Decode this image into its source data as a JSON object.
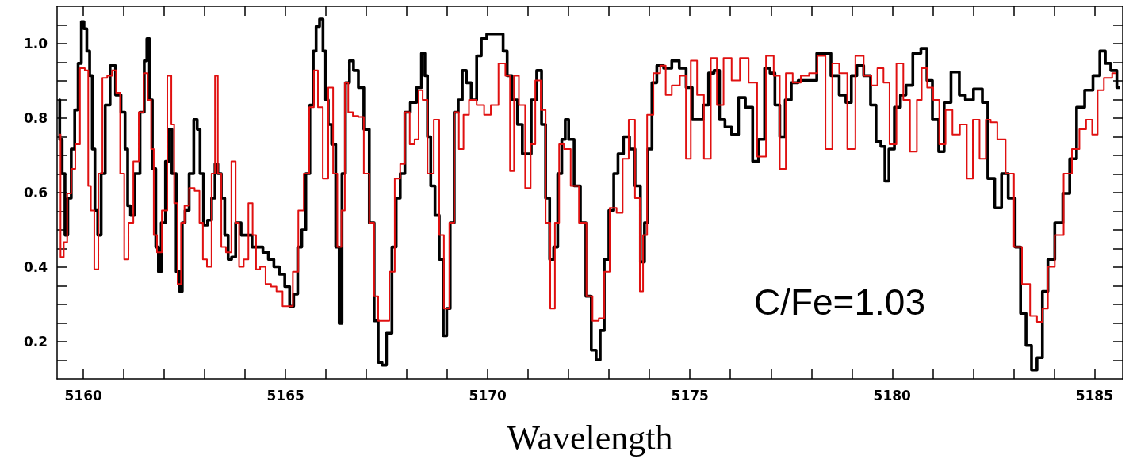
{
  "chart_data": {
    "type": "step",
    "xlabel": "Wavelength",
    "annotations": [
      "C/Fe=1.03"
    ],
    "xlim": [
      5159.35,
      5185.7
    ],
    "ylim": [
      0.1,
      1.1
    ],
    "xticks": [
      5160,
      {
        "value": 5161,
        "label": null
      },
      {
        "value": 5162,
        "label": null
      },
      {
        "value": 5163,
        "label": null
      },
      {
        "value": 5164,
        "label": null
      },
      5165,
      {
        "value": 5166,
        "label": null
      },
      {
        "value": 5167,
        "label": null
      },
      {
        "value": 5168,
        "label": null
      },
      {
        "value": 5169,
        "label": null
      },
      5170,
      {
        "value": 5171,
        "label": null
      },
      {
        "value": 5172,
        "label": null
      },
      {
        "value": 5173,
        "label": null
      },
      {
        "value": 5174,
        "label": null
      },
      5175,
      {
        "value": 5176,
        "label": null
      },
      {
        "value": 5177,
        "label": null
      },
      {
        "value": 5178,
        "label": null
      },
      {
        "value": 5179,
        "label": null
      },
      5180,
      {
        "value": 5181,
        "label": null
      },
      {
        "value": 5182,
        "label": null
      },
      {
        "value": 5183,
        "label": null
      },
      {
        "value": 5184,
        "label": null
      },
      5185
    ],
    "yticks": [
      {
        "value": 0.15,
        "label": null
      },
      0.2,
      {
        "value": 0.25,
        "label": null
      },
      {
        "value": 0.3,
        "label": null
      },
      {
        "value": 0.35,
        "label": null
      },
      0.4,
      {
        "value": 0.45,
        "label": null
      },
      {
        "value": 0.5,
        "label": null
      },
      {
        "value": 0.55,
        "label": null
      },
      0.6,
      {
        "value": 0.65,
        "label": null
      },
      {
        "value": 0.7,
        "label": null
      },
      {
        "value": 0.75,
        "label": null
      },
      0.8,
      {
        "value": 0.85,
        "label": null
      },
      {
        "value": 0.9,
        "label": null
      },
      {
        "value": 0.95,
        "label": null
      },
      {
        "value": 1,
        "label": "1.0"
      },
      {
        "value": 1.05,
        "label": null
      }
    ],
    "series": [
      {
        "color": "#000000",
        "x": [
          5159.39,
          5159.44,
          5159.51,
          5159.58,
          5159.65,
          5159.75,
          5159.82,
          5159.92,
          5159.98,
          5160.05,
          5160.12,
          5160.19,
          5160.25,
          5160.32,
          5160.39,
          5160.49,
          5160.59,
          5160.73,
          5160.86,
          5161.0,
          5161.06,
          5161.13,
          5161.2,
          5161.33,
          5161.47,
          5161.54,
          5161.6,
          5161.67,
          5161.74,
          5161.84,
          5161.87,
          5161.98,
          5162.08,
          5162.14,
          5162.24,
          5162.35,
          5162.41,
          5162.48,
          5162.55,
          5162.68,
          5162.78,
          5162.85,
          5162.92,
          5163.02,
          5163.12,
          5163.22,
          5163.29,
          5163.36,
          5163.46,
          5163.53,
          5163.63,
          5163.7,
          5163.83,
          5163.97,
          5164.1,
          5164.24,
          5164.37,
          5164.51,
          5164.64,
          5164.78,
          5164.91,
          5165.05,
          5165.15,
          5165.25,
          5165.35,
          5165.45,
          5165.55,
          5165.65,
          5165.72,
          5165.79,
          5165.89,
          5165.96,
          5166.02,
          5166.09,
          5166.19,
          5166.29,
          5166.36,
          5166.43,
          5166.53,
          5166.63,
          5166.73,
          5166.87,
          5167.0,
          5167.14,
          5167.24,
          5167.34,
          5167.43,
          5167.56,
          5167.7,
          5167.77,
          5167.9,
          5168.0,
          5168.17,
          5168.31,
          5168.41,
          5168.48,
          5168.54,
          5168.64,
          5168.75,
          5168.85,
          5168.95,
          5169.02,
          5169.12,
          5169.22,
          5169.32,
          5169.42,
          5169.52,
          5169.66,
          5169.79,
          5169.89,
          5170.06,
          5170.33,
          5170.43,
          5170.53,
          5170.67,
          5170.8,
          5170.91,
          5171.01,
          5171.14,
          5171.28,
          5171.38,
          5171.48,
          5171.58,
          5171.68,
          5171.78,
          5171.88,
          5171.95,
          5172.05,
          5172.22,
          5172.36,
          5172.49,
          5172.63,
          5172.73,
          5172.83,
          5172.93,
          5173.06,
          5173.17,
          5173.27,
          5173.44,
          5173.57,
          5173.71,
          5173.84,
          5173.91,
          5174.01,
          5174.11,
          5174.25,
          5174.45,
          5174.65,
          5174.82,
          5174.99,
          5175.12,
          5175.26,
          5175.39,
          5175.53,
          5175.66,
          5175.8,
          5175.93,
          5176.13,
          5176.27,
          5176.47,
          5176.63,
          5176.76,
          5176.93,
          5177.03,
          5177.17,
          5177.27,
          5177.44,
          5177.57,
          5177.78,
          5178.05,
          5178.22,
          5178.38,
          5178.59,
          5178.79,
          5178.92,
          5179.06,
          5179.19,
          5179.4,
          5179.53,
          5179.67,
          5179.77,
          5179.87,
          5179.97,
          5180.14,
          5180.27,
          5180.41,
          5180.61,
          5180.81,
          5180.91,
          5181.08,
          5181.22,
          5181.35,
          5181.56,
          5181.76,
          5181.86,
          5182.16,
          5182.3,
          5182.43,
          5182.64,
          5182.77,
          5182.97,
          5183.11,
          5183.24,
          5183.38,
          5183.51,
          5183.65,
          5183.78,
          5183.92,
          5184.12,
          5184.32,
          5184.46,
          5184.66,
          5184.86,
          5185.07,
          5185.2,
          5185.34,
          5185.47,
          5185.64
        ],
        "values": [
          0.849,
          0.743,
          0.651,
          0.486,
          0.585,
          0.717,
          0.822,
          0.947,
          1.059,
          1.04,
          0.98,
          0.914,
          0.717,
          0.552,
          0.486,
          0.651,
          0.835,
          0.941,
          0.862,
          0.816,
          0.717,
          0.565,
          0.539,
          0.651,
          0.816,
          0.954,
          1.013,
          0.849,
          0.664,
          0.454,
          0.388,
          0.519,
          0.684,
          0.77,
          0.651,
          0.388,
          0.335,
          0.519,
          0.552,
          0.651,
          0.796,
          0.77,
          0.651,
          0.513,
          0.526,
          0.585,
          0.677,
          0.651,
          0.585,
          0.486,
          0.421,
          0.427,
          0.519,
          0.486,
          0.486,
          0.454,
          0.454,
          0.44,
          0.421,
          0.401,
          0.381,
          0.348,
          0.295,
          0.328,
          0.454,
          0.5,
          0.651,
          0.835,
          0.98,
          1.046,
          1.066,
          0.98,
          0.849,
          0.783,
          0.73,
          0.454,
          0.249,
          0.651,
          0.895,
          0.954,
          0.928,
          0.882,
          0.77,
          0.519,
          0.256,
          0.144,
          0.137,
          0.223,
          0.454,
          0.585,
          0.651,
          0.816,
          0.842,
          0.882,
          0.974,
          0.914,
          0.75,
          0.618,
          0.539,
          0.421,
          0.216,
          0.289,
          0.519,
          0.816,
          0.849,
          0.928,
          0.895,
          0.849,
          0.967,
          1.013,
          1.026,
          1.026,
          0.98,
          0.914,
          0.849,
          0.783,
          0.704,
          0.704,
          0.849,
          0.928,
          0.783,
          0.585,
          0.421,
          0.454,
          0.651,
          0.743,
          0.796,
          0.743,
          0.618,
          0.519,
          0.322,
          0.177,
          0.151,
          0.23,
          0.421,
          0.552,
          0.651,
          0.704,
          0.75,
          0.717,
          0.618,
          0.414,
          0.519,
          0.717,
          0.895,
          0.941,
          0.934,
          0.954,
          0.934,
          0.882,
          0.796,
          0.796,
          0.835,
          0.921,
          0.928,
          0.796,
          0.776,
          0.756,
          0.855,
          0.829,
          0.684,
          0.743,
          0.934,
          0.921,
          0.835,
          0.75,
          0.849,
          0.895,
          0.901,
          0.901,
          0.974,
          0.974,
          0.914,
          0.862,
          0.842,
          0.914,
          0.941,
          0.914,
          0.835,
          0.737,
          0.724,
          0.631,
          0.717,
          0.829,
          0.862,
          0.888,
          0.974,
          0.987,
          0.901,
          0.796,
          0.71,
          0.842,
          0.924,
          0.862,
          0.849,
          0.878,
          0.842,
          0.638,
          0.559,
          0.651,
          0.585,
          0.454,
          0.276,
          0.19,
          0.124,
          0.157,
          0.335,
          0.421,
          0.519,
          0.598,
          0.691,
          0.829,
          0.875,
          0.914,
          0.98,
          0.947,
          0.928,
          0.882
        ]
      },
      {
        "color": "#e01010",
        "x": [
          5159.39,
          5159.48,
          5159.55,
          5159.65,
          5159.75,
          5159.85,
          5159.98,
          5160.09,
          5160.15,
          5160.22,
          5160.32,
          5160.42,
          5160.52,
          5160.66,
          5160.76,
          5160.86,
          5160.96,
          5161.06,
          5161.17,
          5161.3,
          5161.44,
          5161.54,
          5161.64,
          5161.71,
          5161.77,
          5161.87,
          5162.01,
          5162.14,
          5162.21,
          5162.28,
          5162.38,
          5162.45,
          5162.55,
          5162.68,
          5162.82,
          5162.92,
          5162.99,
          5163.12,
          5163.22,
          5163.29,
          5163.36,
          5163.46,
          5163.59,
          5163.73,
          5163.8,
          5163.9,
          5164.03,
          5164.13,
          5164.24,
          5164.3,
          5164.44,
          5164.57,
          5164.71,
          5164.84,
          5165.01,
          5165.11,
          5165.25,
          5165.38,
          5165.52,
          5165.65,
          5165.75,
          5165.85,
          5165.99,
          5166.12,
          5166.23,
          5166.33,
          5166.43,
          5166.5,
          5166.6,
          5166.73,
          5166.87,
          5167.0,
          5167.14,
          5167.24,
          5167.34,
          5167.5,
          5167.63,
          5167.77,
          5167.9,
          5168.0,
          5168.14,
          5168.24,
          5168.34,
          5168.44,
          5168.58,
          5168.75,
          5168.85,
          5168.98,
          5169.12,
          5169.22,
          5169.35,
          5169.45,
          5169.62,
          5169.83,
          5169.99,
          5170.16,
          5170.37,
          5170.5,
          5170.6,
          5170.7,
          5170.84,
          5171.01,
          5171.11,
          5171.24,
          5171.38,
          5171.48,
          5171.61,
          5171.71,
          5171.82,
          5171.95,
          5172.15,
          5172.36,
          5172.52,
          5172.66,
          5172.83,
          5172.93,
          5173.1,
          5173.27,
          5173.4,
          5173.57,
          5173.71,
          5173.81,
          5173.87,
          5174.01,
          5174.18,
          5174.35,
          5174.45,
          5174.65,
          5174.85,
          5174.95,
          5175.09,
          5175.26,
          5175.43,
          5175.6,
          5175.73,
          5175.93,
          5176.13,
          5176.34,
          5176.56,
          5176.76,
          5177.0,
          5177.14,
          5177.3,
          5177.44,
          5177.64,
          5177.84,
          5178.05,
          5178.25,
          5178.45,
          5178.59,
          5178.79,
          5178.99,
          5179.19,
          5179.4,
          5179.57,
          5179.7,
          5179.87,
          5180.0,
          5180.21,
          5180.34,
          5180.54,
          5180.68,
          5180.78,
          5180.95,
          5181.08,
          5181.25,
          5181.39,
          5181.59,
          5181.76,
          5181.93,
          5182.06,
          5182.26,
          5182.37,
          5182.5,
          5182.7,
          5182.91,
          5183.11,
          5183.31,
          5183.51,
          5183.65,
          5183.78,
          5183.92,
          5184.12,
          5184.36,
          5184.53,
          5184.73,
          5184.86,
          5185.03,
          5185.13,
          5185.34,
          5185.54
        ],
        "values": [
          0.756,
          0.427,
          0.467,
          0.598,
          0.664,
          0.73,
          0.934,
          0.928,
          0.618,
          0.552,
          0.394,
          0.651,
          0.908,
          0.914,
          0.928,
          0.868,
          0.651,
          0.421,
          0.519,
          0.684,
          0.816,
          0.921,
          0.849,
          0.717,
          0.486,
          0.44,
          0.552,
          0.914,
          0.783,
          0.572,
          0.355,
          0.519,
          0.565,
          0.612,
          0.605,
          0.519,
          0.421,
          0.401,
          0.651,
          0.914,
          0.651,
          0.454,
          0.44,
          0.684,
          0.519,
          0.401,
          0.421,
          0.572,
          0.486,
          0.394,
          0.401,
          0.355,
          0.348,
          0.335,
          0.295,
          0.295,
          0.388,
          0.552,
          0.651,
          0.829,
          0.928,
          0.829,
          0.638,
          0.882,
          0.651,
          0.454,
          0.552,
          0.895,
          0.816,
          0.806,
          0.803,
          0.651,
          0.519,
          0.322,
          0.256,
          0.256,
          0.388,
          0.638,
          0.677,
          0.816,
          0.73,
          0.743,
          0.875,
          0.849,
          0.651,
          0.796,
          0.486,
          0.289,
          0.519,
          0.816,
          0.717,
          0.809,
          0.849,
          0.835,
          0.809,
          0.835,
          0.947,
          0.914,
          0.658,
          0.914,
          0.835,
          0.612,
          0.73,
          0.901,
          0.822,
          0.519,
          0.289,
          0.519,
          0.73,
          0.717,
          0.618,
          0.519,
          0.322,
          0.256,
          0.263,
          0.388,
          0.559,
          0.546,
          0.691,
          0.796,
          0.585,
          0.335,
          0.486,
          0.809,
          0.921,
          0.941,
          0.862,
          0.888,
          0.914,
          0.691,
          0.954,
          0.862,
          0.691,
          0.961,
          0.835,
          0.961,
          0.901,
          0.961,
          0.895,
          0.697,
          0.967,
          0.914,
          0.664,
          0.921,
          0.895,
          0.914,
          0.921,
          0.967,
          0.717,
          0.947,
          0.921,
          0.717,
          0.967,
          0.914,
          0.888,
          0.934,
          0.895,
          0.73,
          0.947,
          0.849,
          0.71,
          0.849,
          0.934,
          0.882,
          0.849,
          0.73,
          0.822,
          0.756,
          0.783,
          0.638,
          0.796,
          0.691,
          0.796,
          0.789,
          0.743,
          0.651,
          0.454,
          0.355,
          0.269,
          0.253,
          0.289,
          0.401,
          0.486,
          0.651,
          0.717,
          0.77,
          0.796,
          0.756,
          0.875,
          0.908,
          0.921
        ]
      }
    ]
  }
}
